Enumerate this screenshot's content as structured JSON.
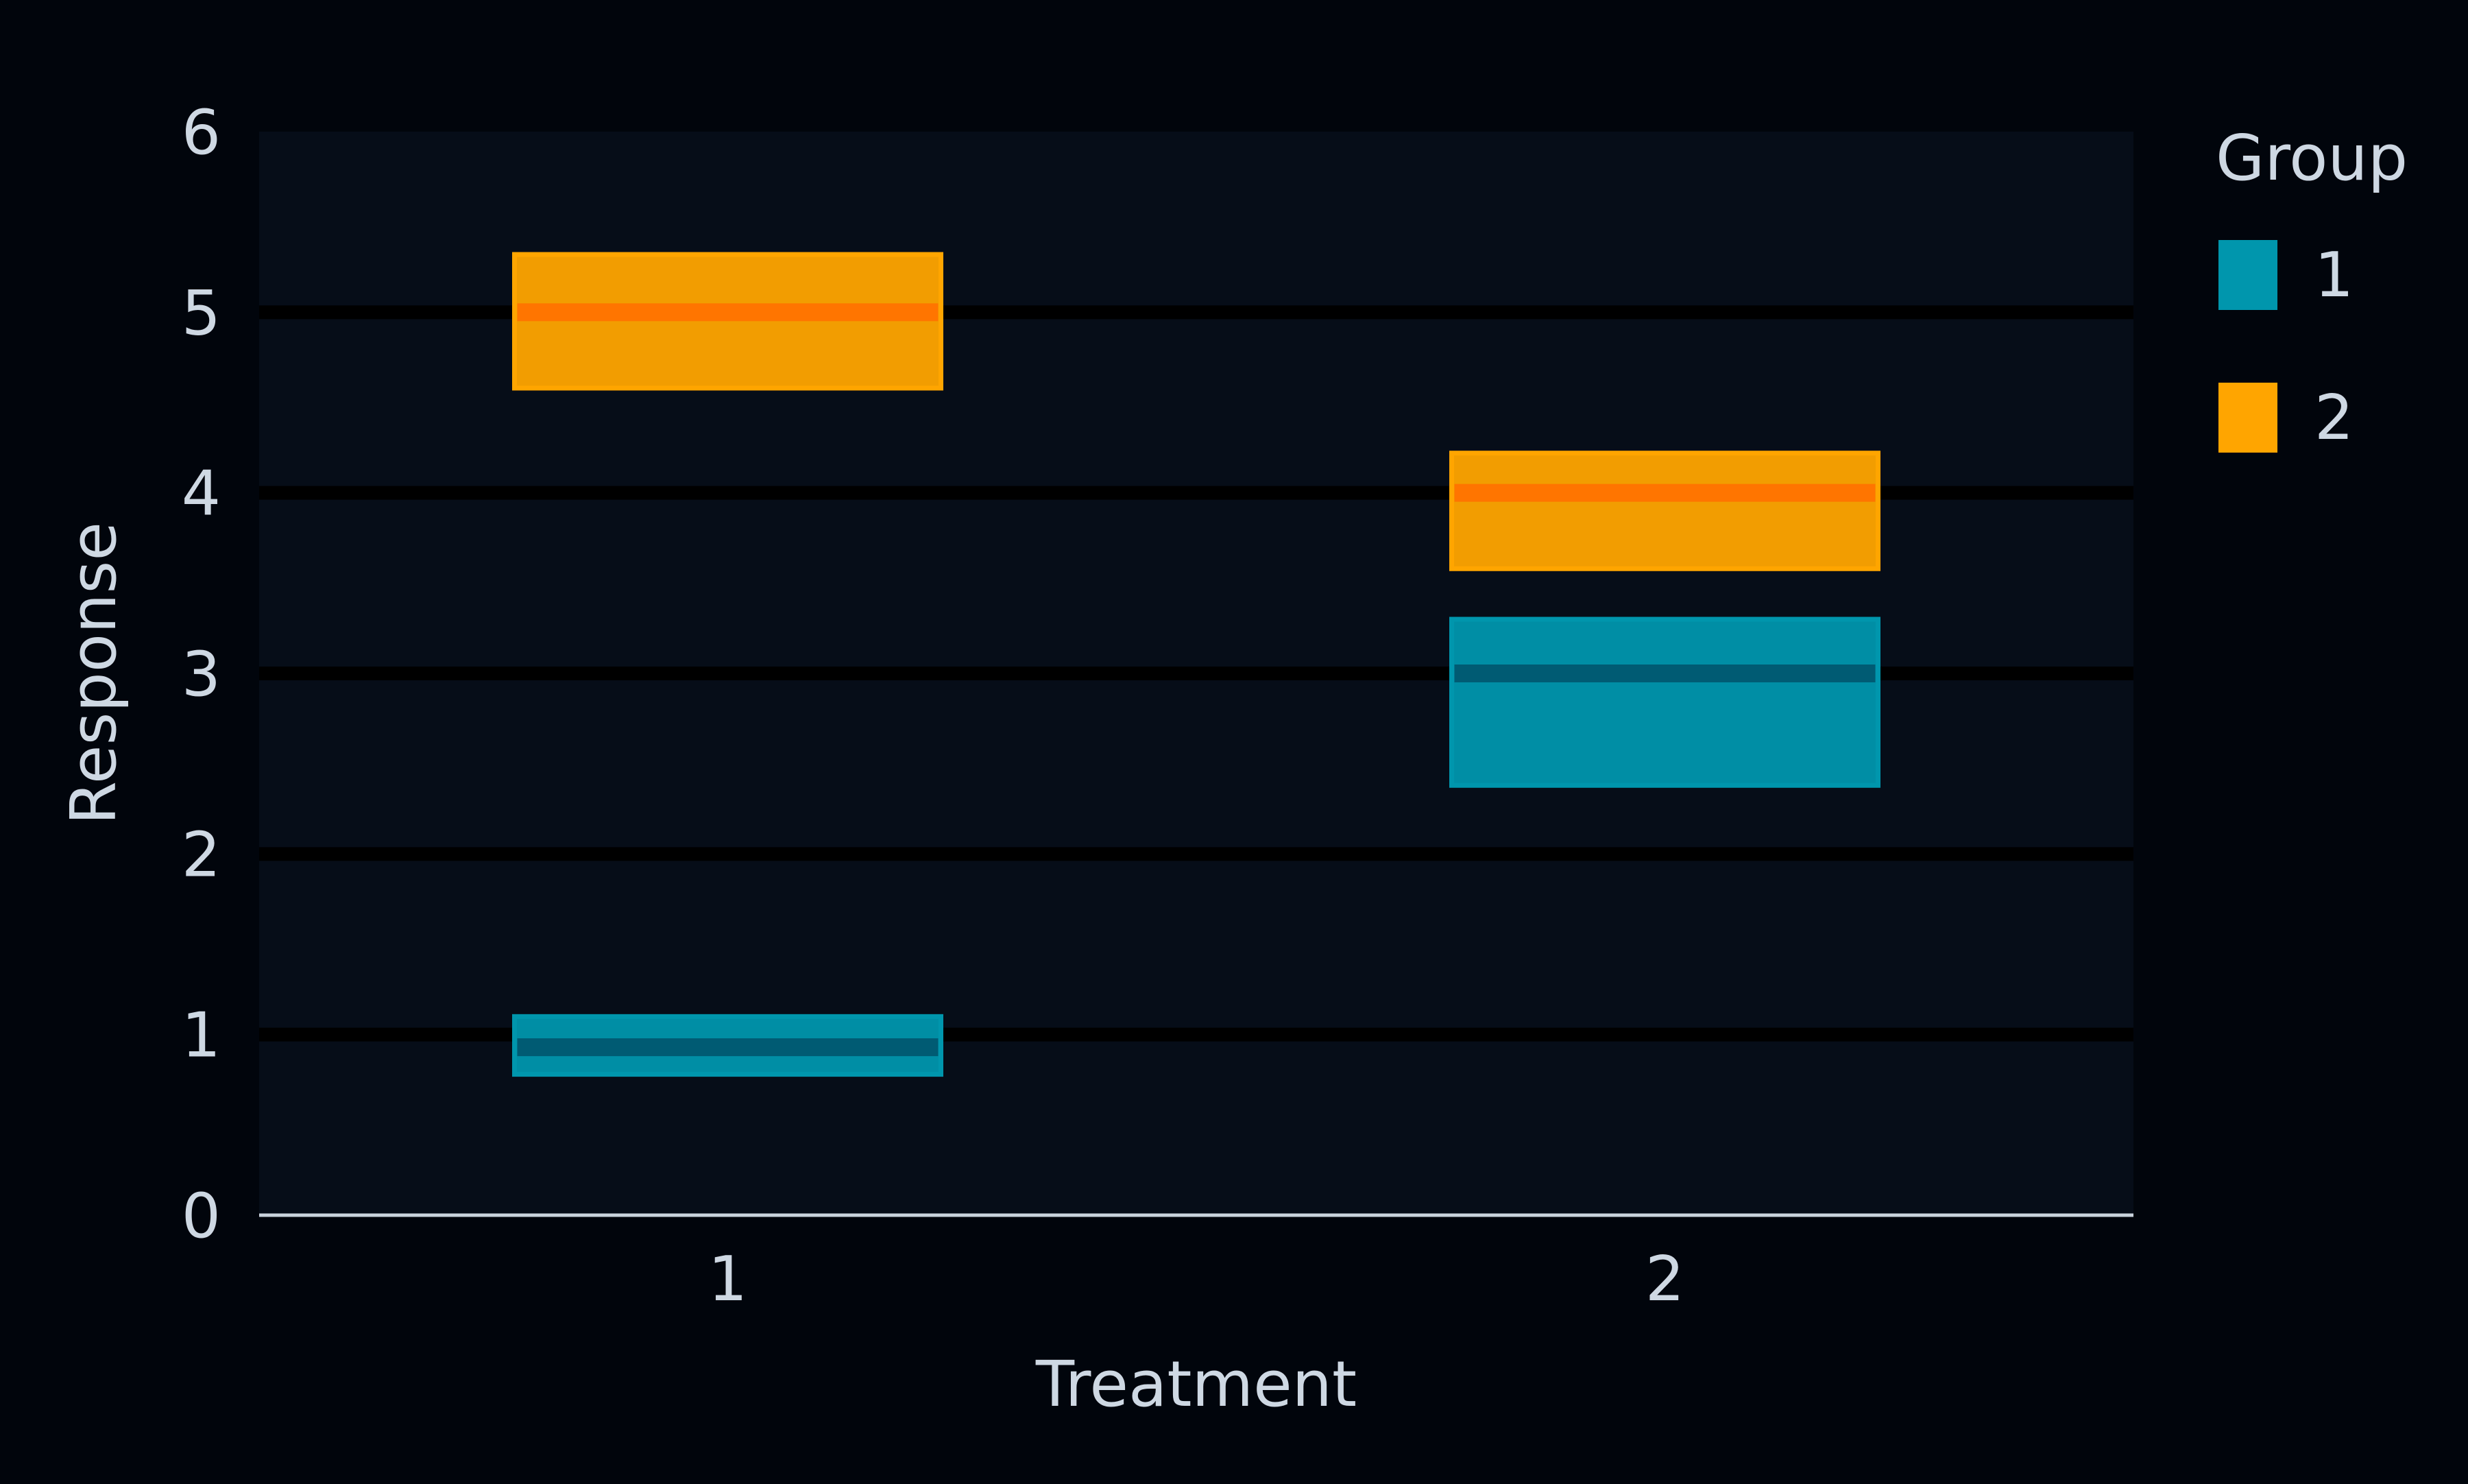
{
  "colors": {
    "background": "#01050c",
    "panel": "#060d18",
    "gridline": "#000000",
    "axis_line": "#c9d3dd",
    "text": "#ced8e3",
    "group_1_fill": "#0096ad",
    "group_1_mid": "#005b73",
    "group_2_fill": "#ffa500",
    "group_2_mid": "#ff7500"
  },
  "chart_data": {
    "type": "crossbar",
    "title": "",
    "xlabel": "Treatment",
    "ylabel": "Response",
    "categories": [
      "1",
      "2"
    ],
    "ylim": [
      0,
      6
    ],
    "yticks": [
      0,
      1,
      2,
      3,
      4,
      5,
      6
    ],
    "grid": "horizontal major gridlines",
    "legend": {
      "title": "Group",
      "position": "right",
      "entries": [
        "1",
        "2"
      ]
    },
    "series": [
      {
        "name": "1",
        "color": "#0096ad",
        "points": [
          {
            "x": "1",
            "y": 0.93,
            "ymin": 0.78,
            "ymax": 1.1
          },
          {
            "x": "2",
            "y": 3.0,
            "ymin": 2.38,
            "ymax": 3.3
          }
        ]
      },
      {
        "name": "2",
        "color": "#ffa500",
        "points": [
          {
            "x": "1",
            "y": 5.0,
            "ymin": 4.58,
            "ymax": 5.32
          },
          {
            "x": "2",
            "y": 4.0,
            "ymin": 3.58,
            "ymax": 4.22
          }
        ]
      }
    ]
  }
}
